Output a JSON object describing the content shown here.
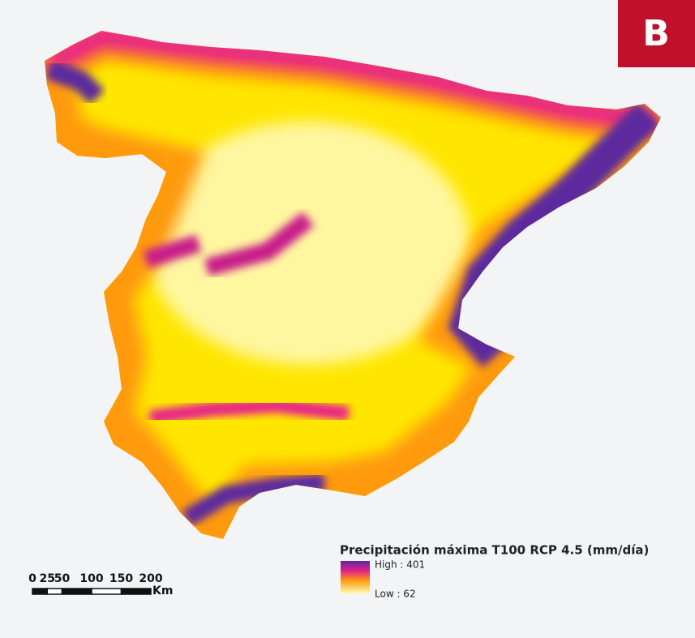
{
  "badge": "B",
  "legend": {
    "title": "Precipitación máxima T100 RCP 4.5 (mm/día)",
    "high": "High : 401",
    "low": "Low : 62"
  },
  "scale_bar": {
    "ticks": [
      0,
      25,
      50,
      100,
      150,
      200
    ],
    "unit": "Km"
  }
}
